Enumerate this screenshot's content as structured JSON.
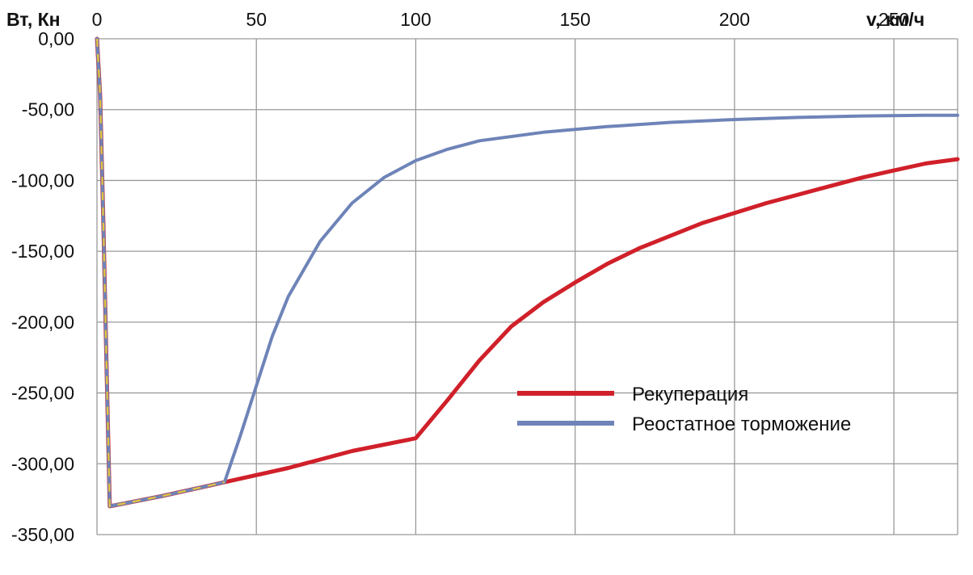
{
  "chart_data": {
    "type": "line",
    "title": "",
    "xlabel": "v, км/ч",
    "ylabel": "Вт, Кн",
    "xlim": [
      0,
      270
    ],
    "ylim": [
      -350,
      0
    ],
    "x_ticks": [
      0,
      50,
      100,
      150,
      200,
      250
    ],
    "x_tick_labels": [
      "0",
      "50",
      "100",
      "150",
      "200",
      "250"
    ],
    "y_ticks": [
      0,
      -50,
      -100,
      -150,
      -200,
      -250,
      -300,
      -350
    ],
    "y_tick_labels": [
      "0,00",
      "-50,00",
      "-100,00",
      "-150,00",
      "-200,00",
      "-250,00",
      "-300,00",
      "-350,00"
    ],
    "x_axis_position": "top",
    "grid": true,
    "legend_position": "center-right",
    "series": [
      {
        "name": "Рекуперация",
        "color": "#d0202a",
        "points": [
          [
            0,
            0
          ],
          [
            1,
            -40
          ],
          [
            2,
            -130
          ],
          [
            3,
            -230
          ],
          [
            4,
            -330
          ],
          [
            20,
            -323
          ],
          [
            40,
            -313
          ],
          [
            60,
            -303
          ],
          [
            80,
            -291
          ],
          [
            100,
            -282
          ],
          [
            110,
            -255
          ],
          [
            120,
            -227
          ],
          [
            130,
            -203
          ],
          [
            140,
            -186
          ],
          [
            150,
            -172
          ],
          [
            160,
            -159
          ],
          [
            170,
            -148
          ],
          [
            180,
            -139
          ],
          [
            190,
            -130
          ],
          [
            200,
            -123
          ],
          [
            210,
            -116
          ],
          [
            220,
            -110
          ],
          [
            230,
            -104
          ],
          [
            240,
            -98
          ],
          [
            250,
            -93
          ],
          [
            260,
            -88
          ],
          [
            270,
            -85
          ]
        ]
      },
      {
        "name": "Реостатное торможение",
        "color": "#6e84b8",
        "points": [
          [
            0,
            0
          ],
          [
            1,
            -40
          ],
          [
            2,
            -130
          ],
          [
            3,
            -230
          ],
          [
            4,
            -330
          ],
          [
            20,
            -323
          ],
          [
            40,
            -313
          ],
          [
            45,
            -280
          ],
          [
            50,
            -245
          ],
          [
            55,
            -210
          ],
          [
            60,
            -182
          ],
          [
            70,
            -143
          ],
          [
            80,
            -116
          ],
          [
            90,
            -98
          ],
          [
            100,
            -86
          ],
          [
            110,
            -78
          ],
          [
            120,
            -72
          ],
          [
            140,
            -66
          ],
          [
            160,
            -62
          ],
          [
            180,
            -59
          ],
          [
            200,
            -57
          ],
          [
            220,
            -55.5
          ],
          [
            240,
            -54.5
          ],
          [
            260,
            -54
          ],
          [
            270,
            -54
          ]
        ]
      }
    ]
  }
}
